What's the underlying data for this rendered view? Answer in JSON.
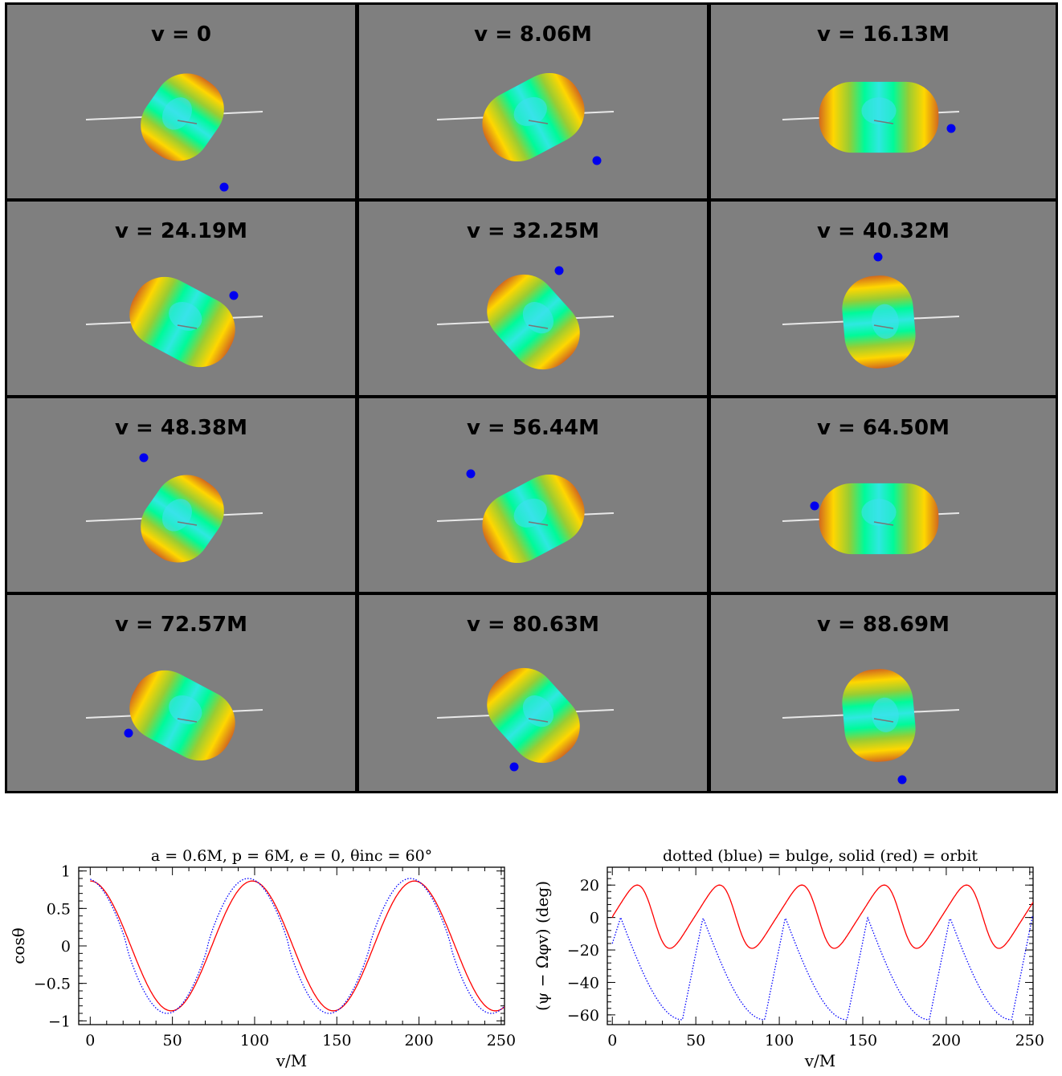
{
  "snapshots": {
    "panels": [
      {
        "label": "v = 0",
        "bulge_angle": 55,
        "bulge_elong": 1.15,
        "moon": [
          270,
          227
        ]
      },
      {
        "label": "v = 8.06M",
        "bulge_angle": 28,
        "bulge_elong": 1.35,
        "moon": [
          296,
          194
        ]
      },
      {
        "label": "v = 16.13M",
        "bulge_angle": 0,
        "bulge_elong": 1.55,
        "moon": [
          299,
          154
        ]
      },
      {
        "label": "v = 24.19M",
        "bulge_angle": -28,
        "bulge_elong": 1.4,
        "moon": [
          282,
          117
        ]
      },
      {
        "label": "v = 32.25M",
        "bulge_angle": -48,
        "bulge_elong": 1.3,
        "moon": [
          249,
          86
        ]
      },
      {
        "label": "v = 40.32M",
        "bulge_angle": -85,
        "bulge_elong": 1.2,
        "moon": [
          208,
          69
        ]
      },
      {
        "label": "v = 48.38M",
        "bulge_angle": 55,
        "bulge_elong": 1.15,
        "moon": [
          170,
          314
        ]
      },
      {
        "label": "v = 56.44M",
        "bulge_angle": 28,
        "bulge_elong": 1.35,
        "moon": [
          139,
          334
        ]
      },
      {
        "label": "v = 64.50M",
        "bulge_angle": 0,
        "bulge_elong": 1.55,
        "moon": [
          129,
          374
        ]
      },
      {
        "label": "v = 72.57M",
        "bulge_angle": -28,
        "bulge_elong": 1.4,
        "moon": [
          151,
          913
        ]
      },
      {
        "label": "v = 80.63M",
        "bulge_angle": -48,
        "bulge_elong": 1.3,
        "moon": [
          193,
          955
        ]
      },
      {
        "label": "v = 88.69M",
        "bulge_angle": -85,
        "bulge_elong": 1.2,
        "moon": [
          238,
          971
        ]
      }
    ]
  },
  "chart_data": [
    {
      "type": "line",
      "title": "a = 0.6M, p = 6M, e = 0, θinc = 60°",
      "xlabel": "v/M",
      "ylabel": "cosθ",
      "xlim": [
        -7,
        252
      ],
      "ylim": [
        -1.05,
        1.05
      ],
      "xticks": [
        0,
        50,
        100,
        150,
        200,
        250
      ],
      "yticks": [
        1,
        0.5,
        0,
        -0.5,
        -1
      ],
      "ytick_labels": [
        "1",
        "0.5",
        "0",
        "−0.5",
        "−1"
      ],
      "series": [
        {
          "style": "solid",
          "color": "#ff0000",
          "model": "cos",
          "amplitude": 0.866,
          "period": 98.6,
          "phase": 0
        },
        {
          "style": "dotted",
          "color": "#0000ff",
          "model": "cos_sharp",
          "amplitude": 0.9,
          "period": 98.6,
          "phase": -2.5
        }
      ]
    },
    {
      "type": "line",
      "title": "dotted (blue) = bulge, solid (red) = orbit",
      "xlabel": "v/M",
      "ylabel": "(ψ − Ωφv) (deg)",
      "xlim": [
        -3,
        252
      ],
      "ylim": [
        -66,
        31
      ],
      "xticks": [
        0,
        50,
        100,
        150,
        200,
        250
      ],
      "yticks": [
        20,
        0,
        -20,
        -40,
        -60
      ],
      "ytick_labels": [
        "20",
        "0",
        "−20",
        "−40",
        "−60"
      ],
      "series": [
        {
          "style": "solid",
          "color": "#ff0000",
          "model": "orbit",
          "period": 49.3,
          "max": 20,
          "min": -19
        },
        {
          "style": "dotted",
          "color": "#0000ff",
          "model": "bulge",
          "period": 49.3,
          "max": 0,
          "min": -63
        }
      ]
    }
  ]
}
